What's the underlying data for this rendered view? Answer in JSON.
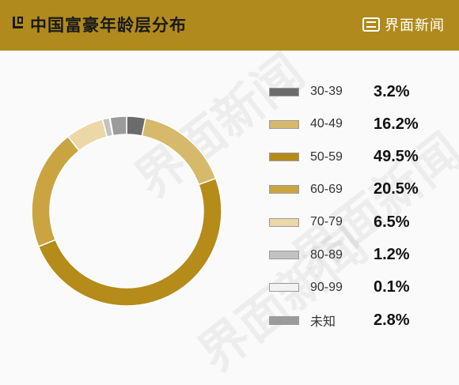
{
  "header": {
    "title": "中国富豪年龄层分布",
    "brand": "界面新闻"
  },
  "watermark_text": "界面新闻",
  "chart_data": {
    "type": "pie",
    "style": "donut",
    "title": "中国富豪年龄层分布",
    "categories": [
      "30-39",
      "40-49",
      "50-59",
      "60-69",
      "70-79",
      "80-89",
      "90-99",
      "未知"
    ],
    "values": [
      3.2,
      16.2,
      49.5,
      20.5,
      6.5,
      1.2,
      0.1,
      2.8
    ],
    "value_labels": [
      "3.2%",
      "16.2%",
      "49.5%",
      "20.5%",
      "6.5%",
      "1.2%",
      "0.1%",
      "2.8%"
    ],
    "colors": [
      "#6b6b6b",
      "#d6b96a",
      "#b58b1a",
      "#c9a441",
      "#ecd7a6",
      "#c2c2c2",
      "#f2f2f2",
      "#9b9b9b"
    ],
    "legend_position": "right"
  }
}
